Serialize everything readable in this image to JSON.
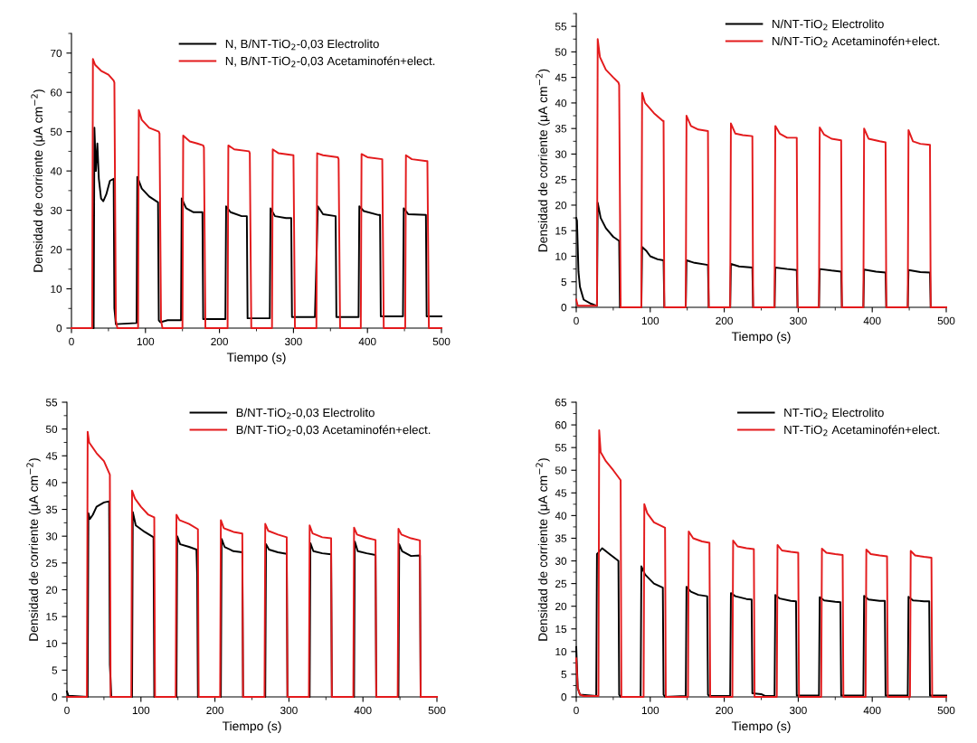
{
  "chart_data": [
    {
      "type": "line",
      "xlabel": "Tiempo (s)",
      "ylabel": "Densidad de corriente (μA cm$^{−2}$)",
      "xlim": [
        0,
        500
      ],
      "ylim": [
        0,
        75
      ],
      "xticks": [
        0,
        100,
        200,
        300,
        400,
        500
      ],
      "yticks": [
        0,
        10,
        20,
        30,
        40,
        50,
        60,
        70
      ],
      "grid": false,
      "legend": "top right",
      "marker": "none",
      "line_style": "solid",
      "series": [
        {
          "name": "N, B/NT-TiO$_{2}$-0,03 Electrolito",
          "color": "#000000",
          "x": [
            0,
            30,
            31,
            33,
            35,
            37,
            40,
            43,
            47,
            52,
            57,
            58,
            60,
            88,
            89,
            95,
            105,
            117,
            118,
            120,
            130,
            148,
            149,
            155,
            165,
            177,
            178,
            208,
            209,
            215,
            230,
            237,
            238,
            268,
            269,
            275,
            290,
            297,
            298,
            329,
            333,
            340,
            357,
            358,
            388,
            389,
            395,
            415,
            417,
            418,
            448,
            449,
            455,
            479,
            480,
            500
          ],
          "values": [
            0,
            0,
            51,
            40,
            47,
            38,
            33,
            32.3,
            34,
            37.5,
            38,
            5,
            1,
            1.3,
            38.5,
            35.5,
            33.5,
            32,
            2,
            1.5,
            2,
            2,
            33,
            30.5,
            29.5,
            29.5,
            2.3,
            2.3,
            31,
            29.5,
            28.5,
            28.5,
            2.5,
            2.5,
            30.5,
            28.5,
            28,
            28,
            2.8,
            2.8,
            31,
            29,
            28.5,
            2.8,
            2.8,
            31,
            29.8,
            28.8,
            28.8,
            3,
            3,
            30.5,
            29,
            28.8,
            3,
            3
          ]
        },
        {
          "name": "N, B/NT-TiO$_{2}$-0,03 Acetaminofén+elect.",
          "color": "#e31a1c",
          "x": [
            0,
            28,
            29,
            32,
            40,
            50,
            57,
            58,
            60,
            62,
            90,
            91,
            95,
            105,
            118,
            119,
            121,
            123,
            150,
            151,
            160,
            170,
            178,
            179,
            181,
            211,
            212,
            220,
            240,
            241,
            243,
            271,
            272,
            280,
            300,
            302,
            331,
            332,
            340,
            360,
            361,
            363,
            391,
            392,
            400,
            420,
            422,
            451,
            452,
            460,
            480,
            481,
            483,
            500
          ],
          "values": [
            0,
            0,
            68.5,
            67,
            65.5,
            64.5,
            63,
            62.5,
            2,
            0,
            0,
            55.5,
            53,
            51,
            50,
            49.5,
            2,
            0,
            0,
            49,
            47.5,
            47,
            46.5,
            46,
            0,
            0,
            46.5,
            45.5,
            45,
            44.5,
            0,
            0,
            45.5,
            44.5,
            44,
            0,
            0,
            44.5,
            44,
            43.5,
            43,
            0,
            0,
            44.3,
            43.5,
            43,
            0,
            0,
            44,
            43,
            42.5,
            42.5,
            0,
            0
          ]
        }
      ]
    },
    {
      "type": "line",
      "xlabel": "Tiempo (s)",
      "ylabel": "Densidad de corriente (μA cm$^{−2}$)",
      "xlim": [
        0,
        500
      ],
      "ylim": [
        0,
        57.5
      ],
      "xticks": [
        0,
        100,
        200,
        300,
        400,
        500
      ],
      "yticks": [
        0,
        5,
        10,
        15,
        20,
        25,
        30,
        35,
        40,
        45,
        50,
        55
      ],
      "grid": false,
      "legend": "top right",
      "marker": "none",
      "line_style": "solid",
      "series": [
        {
          "name": "N/NT-TiO$_{2}$ Electrolito",
          "color": "#000000",
          "x": [
            0,
            1,
            3,
            5,
            10,
            20,
            28,
            29,
            33,
            40,
            50,
            58,
            59,
            88,
            89,
            95,
            100,
            110,
            118,
            119,
            148,
            149,
            160,
            178,
            179,
            208,
            209,
            220,
            238,
            239,
            268,
            269,
            285,
            298,
            299,
            328,
            329,
            345,
            358,
            359,
            388,
            389,
            405,
            418,
            419,
            448,
            449,
            465,
            478,
            479,
            500
          ],
          "values": [
            17.5,
            17,
            7,
            4,
            1.5,
            0.7,
            0.3,
            20.5,
            17.5,
            15.5,
            13.8,
            13,
            0,
            0,
            11.8,
            11,
            10,
            9.4,
            9.2,
            0,
            0,
            9.2,
            8.7,
            8.3,
            0,
            0,
            8.5,
            8,
            7.8,
            0,
            0,
            7.8,
            7.5,
            7.3,
            0,
            0,
            7.5,
            7.2,
            7,
            0,
            0,
            7.4,
            7,
            6.8,
            0,
            0,
            7.3,
            6.9,
            6.8,
            0,
            0
          ]
        },
        {
          "name": "N/NT-TiO$_{2}$ Acetaminofén+elect.",
          "color": "#e31a1c",
          "x": [
            0,
            2,
            28,
            29,
            32,
            40,
            50,
            57,
            58,
            60,
            88,
            89,
            93,
            105,
            117,
            118,
            119,
            148,
            149,
            155,
            165,
            178,
            179,
            208,
            209,
            215,
            225,
            238,
            239,
            268,
            269,
            275,
            285,
            298,
            299,
            328,
            329,
            335,
            345,
            358,
            359,
            388,
            389,
            395,
            410,
            418,
            419,
            448,
            449,
            455,
            465,
            478,
            479,
            500
          ],
          "values": [
            1.5,
            0.3,
            0.3,
            52.5,
            49,
            46.5,
            45,
            44,
            43.5,
            0,
            0,
            42,
            40,
            38,
            36.5,
            36.5,
            0,
            0,
            37.5,
            35.5,
            34.8,
            34.5,
            0,
            0,
            36,
            34,
            33.7,
            33.5,
            0,
            0,
            35.5,
            34,
            33.2,
            33.2,
            0,
            0,
            35.2,
            33.8,
            33,
            32.7,
            0,
            0,
            35,
            33,
            32.5,
            32.3,
            0,
            0,
            34.7,
            32.5,
            32,
            31.8,
            0,
            0
          ]
        }
      ]
    },
    {
      "type": "line",
      "xlabel": "Tiempo (s)",
      "ylabel": "Densidad de corriente (μA cm$^{−2}$)",
      "xlim": [
        0,
        500
      ],
      "ylim": [
        0,
        55
      ],
      "xticks": [
        0,
        100,
        200,
        300,
        400,
        500
      ],
      "yticks": [
        0,
        5,
        10,
        15,
        20,
        25,
        30,
        35,
        40,
        45,
        50,
        55
      ],
      "grid": false,
      "legend": "top right",
      "marker": "none",
      "line_style": "solid",
      "series": [
        {
          "name": "B/NT-TiO$_{2}$-0,03 Electrolito",
          "color": "#000000",
          "x": [
            0,
            2,
            28,
            29,
            31,
            35,
            40,
            50,
            57,
            58,
            60,
            88,
            89,
            93,
            105,
            117,
            118,
            148,
            149,
            153,
            165,
            175,
            176,
            177,
            208,
            209,
            213,
            225,
            237,
            238,
            268,
            269,
            273,
            285,
            297,
            298,
            328,
            329,
            333,
            345,
            357,
            358,
            388,
            389,
            393,
            405,
            417,
            418,
            448,
            449,
            453,
            465,
            477,
            478,
            500
          ],
          "values": [
            1,
            0.2,
            0,
            34.3,
            33.2,
            34,
            35.5,
            36.3,
            36.5,
            6,
            0,
            0,
            34.5,
            32,
            30.8,
            29.8,
            0,
            0,
            30,
            28.5,
            28,
            27.5,
            22.7,
            0,
            0,
            29.5,
            28,
            27.2,
            27,
            0,
            0,
            28.5,
            27.5,
            27,
            26.7,
            0,
            0,
            28.7,
            27.2,
            26.8,
            26.6,
            0,
            0,
            29,
            27.2,
            26.8,
            26.5,
            0,
            0,
            28.5,
            27.2,
            26.3,
            26.4,
            0,
            0
          ]
        },
        {
          "name": "B/NT-TiO$_{2}$-0,03 Acetaminofén+elect.",
          "color": "#e31a1c",
          "x": [
            0,
            27,
            28,
            30,
            40,
            50,
            58,
            59,
            87,
            88,
            92,
            100,
            110,
            118,
            119,
            147,
            148,
            152,
            165,
            177,
            178,
            207,
            208,
            212,
            225,
            237,
            238,
            267,
            268,
            272,
            285,
            297,
            298,
            327,
            328,
            332,
            345,
            357,
            358,
            387,
            388,
            392,
            405,
            417,
            418,
            447,
            448,
            452,
            465,
            477,
            478,
            500
          ],
          "values": [
            0,
            0,
            49.5,
            47.5,
            45.5,
            44,
            41.5,
            0,
            0,
            38.5,
            37,
            35.5,
            34,
            33.5,
            0,
            0,
            34,
            33,
            32.3,
            31.3,
            0,
            0,
            33,
            31.5,
            30.8,
            30.5,
            0,
            0,
            32.3,
            31,
            30.3,
            29.8,
            0,
            0,
            32,
            30.5,
            29.8,
            29.6,
            0,
            0,
            31.6,
            30.3,
            29.7,
            29.3,
            0,
            0,
            31.4,
            30.3,
            29.6,
            29.2,
            0,
            0
          ]
        }
      ]
    },
    {
      "type": "line",
      "xlabel": "Tiempo (s)",
      "ylabel": "Densidad de corriente (μA cm$^{−2}$)",
      "xlim": [
        0,
        500
      ],
      "ylim": [
        0,
        65
      ],
      "xticks": [
        0,
        100,
        200,
        300,
        400,
        500
      ],
      "yticks": [
        0,
        5,
        10,
        15,
        20,
        25,
        30,
        35,
        40,
        45,
        50,
        55,
        60,
        65
      ],
      "grid": false,
      "legend": "top right",
      "marker": "none",
      "line_style": "solid",
      "series": [
        {
          "name": "NT-TiO$_{2}$ Electrolito",
          "color": "#000000",
          "x": [
            0,
            2,
            5,
            27,
            28,
            31,
            35,
            45,
            57,
            58,
            60,
            87,
            88,
            93,
            105,
            117,
            118,
            120,
            148,
            149,
            155,
            165,
            177,
            178,
            180,
            208,
            209,
            215,
            230,
            237,
            238,
            250,
            255,
            268,
            269,
            275,
            290,
            297,
            298,
            328,
            329,
            335,
            350,
            357,
            358,
            388,
            389,
            395,
            410,
            417,
            418,
            448,
            449,
            455,
            470,
            477,
            478,
            500
          ],
          "values": [
            11,
            2,
            0.5,
            0.2,
            31.5,
            32,
            32.8,
            31.5,
            30,
            0.5,
            0,
            0,
            28.8,
            27,
            25,
            24.1,
            0.5,
            0,
            0.2,
            24.3,
            23.2,
            22.5,
            22.2,
            0.5,
            0.2,
            0.2,
            22.9,
            22.2,
            21.6,
            21.5,
            0.8,
            0.6,
            0.2,
            0.2,
            22.5,
            21.7,
            21.2,
            21.1,
            0.3,
            0.3,
            22,
            21.3,
            21,
            20.9,
            0.3,
            0.3,
            22.3,
            21.5,
            21.2,
            21.2,
            0.3,
            0.3,
            22.1,
            21.3,
            21.1,
            21.1,
            0.3,
            0.3
          ]
        },
        {
          "name": "NT-TiO$_{2}$ Acetaminofén+elect.",
          "color": "#e31a1c",
          "x": [
            0,
            2,
            5,
            10,
            30,
            31,
            33,
            40,
            50,
            60,
            61,
            91,
            92,
            96,
            105,
            120,
            121,
            151,
            152,
            158,
            170,
            180,
            181,
            211,
            212,
            218,
            230,
            240,
            241,
            271,
            272,
            278,
            290,
            300,
            301,
            331,
            332,
            338,
            350,
            360,
            361,
            391,
            392,
            398,
            410,
            420,
            421,
            451,
            452,
            458,
            470,
            480,
            481,
            500
          ],
          "values": [
            8.5,
            2,
            0.5,
            0.2,
            0.2,
            58.8,
            54,
            52,
            50,
            47.8,
            0,
            0,
            42.5,
            40.5,
            38.5,
            37.3,
            0,
            0,
            36.5,
            35,
            34.3,
            34,
            0,
            0,
            34.5,
            33.2,
            32.8,
            32.6,
            0,
            0,
            33.5,
            32.3,
            32,
            31.8,
            0,
            0,
            32.7,
            31.8,
            31.5,
            31.3,
            0,
            0,
            32.5,
            31.5,
            31.2,
            31,
            0,
            0,
            32.2,
            31.2,
            30.9,
            30.7,
            0,
            0
          ]
        }
      ]
    }
  ]
}
